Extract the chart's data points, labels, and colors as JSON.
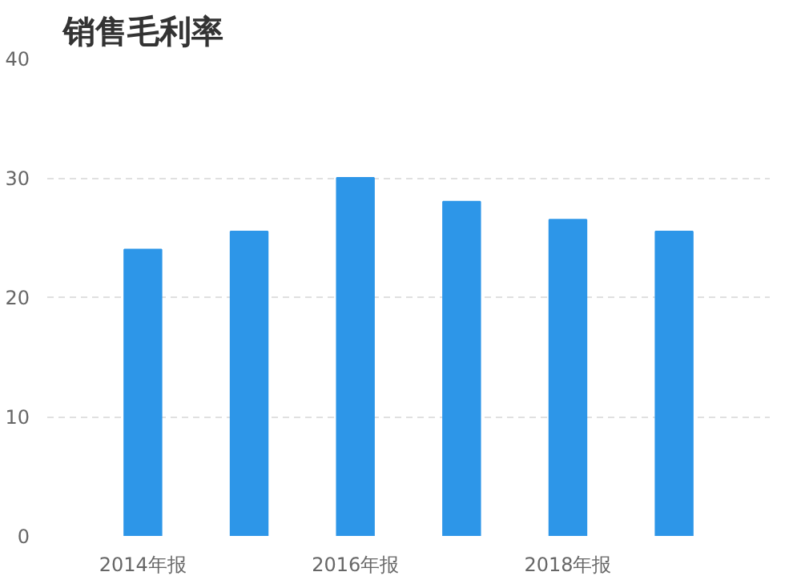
{
  "chart_data": {
    "type": "bar",
    "title": "销售毛利率",
    "categories": [
      "2014年报",
      null,
      "2016年报",
      null,
      "2018年报",
      null
    ],
    "values": [
      24,
      25.5,
      30,
      28,
      26.5,
      25.5
    ],
    "color": "#2d96e8",
    "ylim": [
      0,
      40
    ],
    "yticks": [
      0,
      10,
      20,
      30,
      40
    ],
    "grid": "y"
  }
}
